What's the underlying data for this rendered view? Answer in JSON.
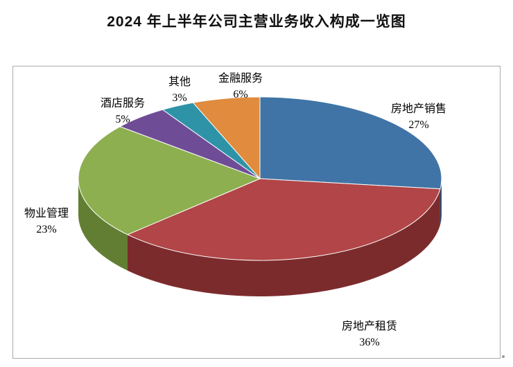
{
  "chart_data": {
    "type": "pie",
    "style": "3d",
    "title": "2024 年上半年公司主营业务收入构成一览图",
    "legend_position": "none",
    "labels_position": "outside",
    "start_angle_deg": 0,
    "direction": "clockwise",
    "slices": [
      {
        "name": "房地产销售",
        "value": 27,
        "pct_label": "27%",
        "color": "#4074A6",
        "side_color": "#2A4D75"
      },
      {
        "name": "房地产租赁",
        "value": 36,
        "pct_label": "36%",
        "color": "#B14547",
        "side_color": "#7C2B2D"
      },
      {
        "name": "物业管理",
        "value": 23,
        "pct_label": "23%",
        "color": "#8DAF4F",
        "side_color": "#627E33"
      },
      {
        "name": "酒店服务",
        "value": 5,
        "pct_label": "5%",
        "color": "#6F4D96",
        "side_color": "#4E3569"
      },
      {
        "name": "其他",
        "value": 3,
        "pct_label": "3%",
        "color": "#2F93A8",
        "side_color": "#206676"
      },
      {
        "name": "金融服务",
        "value": 6,
        "pct_label": "6%",
        "color": "#E08B3D",
        "side_color": "#9E5F26"
      }
    ]
  }
}
